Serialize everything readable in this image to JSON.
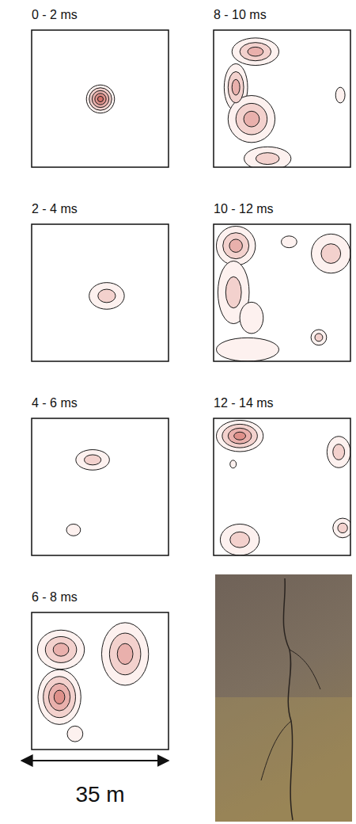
{
  "chart_data": [
    {
      "type": "contour",
      "title": "0 - 2 ms",
      "xlim": [
        0,
        35
      ],
      "ylim": [
        0,
        35
      ],
      "tick_labels": false,
      "sources": [
        {
          "x": 17.6,
          "y": 17.4,
          "rx": 3.6,
          "ry": 3.6,
          "levels": 5
        }
      ]
    },
    {
      "type": "contour",
      "title": "2 - 4 ms",
      "xlim": [
        0,
        35
      ],
      "ylim": [
        0,
        35
      ],
      "tick_labels": false,
      "sources": [
        {
          "x": 19.2,
          "y": 16.7,
          "rx": 4.5,
          "ry": 3.4,
          "levels": 2
        }
      ]
    },
    {
      "type": "contour",
      "title": "4 - 6 ms",
      "xlim": [
        0,
        35
      ],
      "ylim": [
        0,
        35
      ],
      "tick_labels": false,
      "sources": [
        {
          "x": 15.6,
          "y": 24.4,
          "rx": 4.3,
          "ry": 2.6,
          "levels": 2
        },
        {
          "x": 10.7,
          "y": 6.5,
          "rx": 1.8,
          "ry": 1.5,
          "levels": 1
        }
      ]
    },
    {
      "type": "contour",
      "title": "6 - 8 ms",
      "xlim": [
        0,
        35
      ],
      "ylim": [
        0,
        35
      ],
      "tick_labels": false,
      "sources": [
        {
          "x": 7.5,
          "y": 25.5,
          "rx": 6,
          "ry": 5,
          "levels": 3
        },
        {
          "x": 7.1,
          "y": 13.4,
          "rx": 5.5,
          "ry": 7,
          "levels": 4
        },
        {
          "x": 23.9,
          "y": 24.4,
          "rx": 6,
          "ry": 8,
          "levels": 3
        },
        {
          "x": 11.1,
          "y": 4,
          "rx": 2,
          "ry": 2,
          "levels": 1
        }
      ]
    },
    {
      "type": "contour",
      "title": "8 - 10 ms",
      "xlim": [
        0,
        35
      ],
      "ylim": [
        0,
        35
      ],
      "tick_labels": false,
      "sources": [
        {
          "x": 10.7,
          "y": 29.5,
          "rx": 6,
          "ry": 3.5,
          "levels": 3
        },
        {
          "x": 5.7,
          "y": 20.4,
          "rx": 3,
          "ry": 6,
          "levels": 3
        },
        {
          "x": 9.7,
          "y": 12.3,
          "rx": 6,
          "ry": 6,
          "levels": 3
        },
        {
          "x": 13.8,
          "y": 2.2,
          "rx": 6,
          "ry": 3,
          "levels": 2
        },
        {
          "x": 32.4,
          "y": 18.4,
          "rx": 1.2,
          "ry": 2,
          "levels": 1
        }
      ]
    },
    {
      "type": "contour",
      "title": "10 - 12 ms",
      "xlim": [
        0,
        35
      ],
      "ylim": [
        0,
        35
      ],
      "tick_labels": false,
      "sources": [
        {
          "x": 5.7,
          "y": 29.5,
          "rx": 5,
          "ry": 5,
          "levels": 3
        },
        {
          "x": 5.1,
          "y": 17.6,
          "rx": 4,
          "ry": 8,
          "levels": 2
        },
        {
          "x": 19.3,
          "y": 30.5,
          "rx": 2,
          "ry": 1.5,
          "levels": 1
        },
        {
          "x": 30,
          "y": 27.5,
          "rx": 5,
          "ry": 5,
          "levels": 2
        },
        {
          "x": 9.7,
          "y": 11.1,
          "rx": 3,
          "ry": 4,
          "levels": 1
        },
        {
          "x": 8.7,
          "y": 3,
          "rx": 8,
          "ry": 3,
          "levels": 1
        },
        {
          "x": 26.9,
          "y": 6.1,
          "rx": 2,
          "ry": 2,
          "levels": 2
        }
      ]
    },
    {
      "type": "contour",
      "title": "12 - 14 ms",
      "xlim": [
        0,
        35
      ],
      "ylim": [
        0,
        35
      ],
      "tick_labels": false,
      "sources": [
        {
          "x": 6.7,
          "y": 30.5,
          "rx": 6,
          "ry": 4,
          "levels": 4
        },
        {
          "x": 32,
          "y": 26.4,
          "rx": 3,
          "ry": 4,
          "levels": 2
        },
        {
          "x": 6.7,
          "y": 4,
          "rx": 5,
          "ry": 4,
          "levels": 2
        },
        {
          "x": 33,
          "y": 7,
          "rx": 2.5,
          "ry": 2.5,
          "levels": 2
        },
        {
          "x": 5,
          "y": 23.3,
          "rx": 0.8,
          "ry": 1,
          "levels": 1
        }
      ]
    }
  ],
  "scale_bar": {
    "label": "35 m",
    "length": 35
  }
}
